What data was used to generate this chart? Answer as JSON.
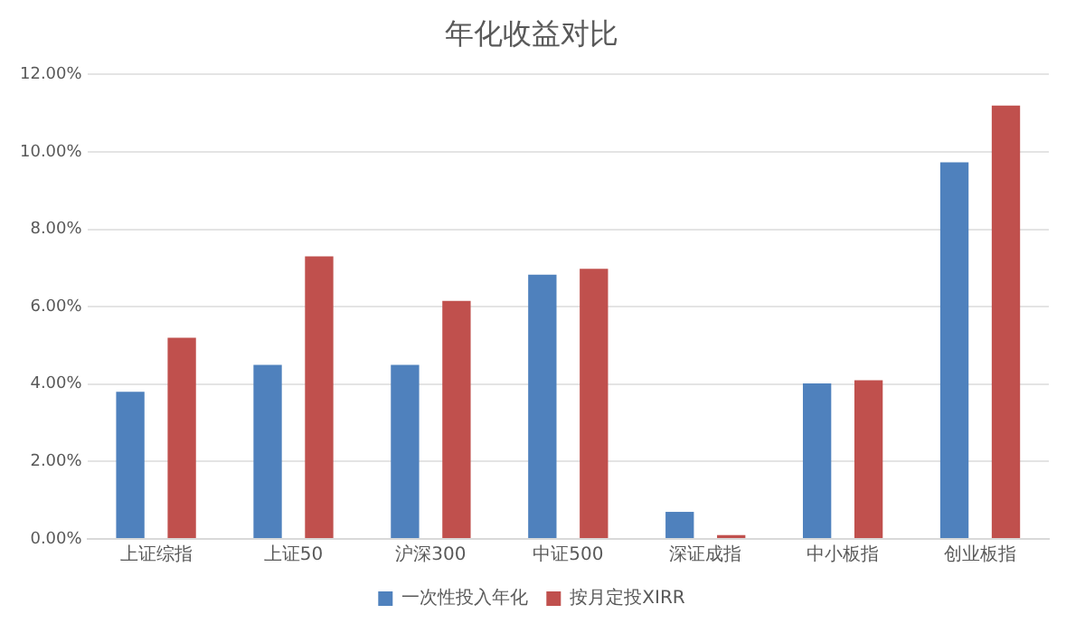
{
  "chart_data": {
    "type": "bar",
    "title": "年化收益对比",
    "categories": [
      "上证综指",
      "上证50",
      "沪深300",
      "中证500",
      "深证成指",
      "中小板指",
      "创业板指"
    ],
    "series": [
      {
        "name": "一次性投入年化",
        "color": "#4f81bd",
        "values": [
          3.8,
          4.5,
          4.5,
          6.83,
          0.7,
          4.02,
          9.73
        ]
      },
      {
        "name": "按月定投XIRR",
        "color": "#c0504d",
        "values": [
          5.2,
          7.3,
          6.15,
          6.98,
          0.1,
          4.1,
          11.2
        ]
      }
    ],
    "ylim": [
      0,
      12
    ],
    "yticks": [
      {
        "value": 0,
        "label": "0.00%"
      },
      {
        "value": 2,
        "label": "2.00%"
      },
      {
        "value": 4,
        "label": "4.00%"
      },
      {
        "value": 6,
        "label": "6.00%"
      },
      {
        "value": 8,
        "label": "8.00%"
      },
      {
        "value": 10,
        "label": "10.00%"
      },
      {
        "value": 12,
        "label": "12.00%"
      }
    ],
    "grid": "y",
    "legend": "bottom"
  }
}
